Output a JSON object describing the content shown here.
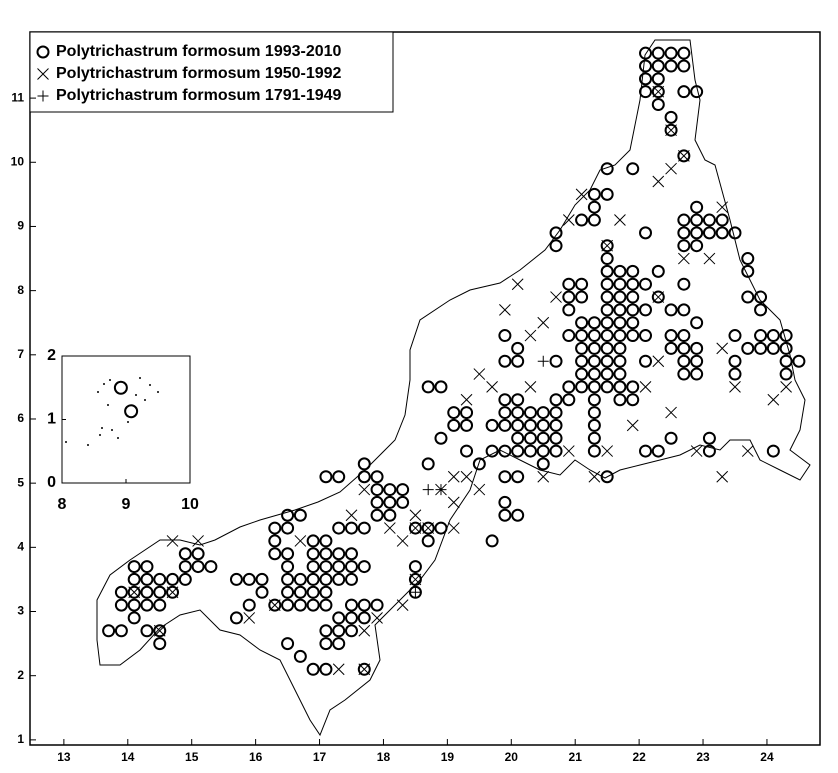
{
  "chart_data": [
    {
      "type": "scatter",
      "xlim": [
        12.47,
        24.83
      ],
      "ylim": [
        0.92,
        12.03
      ],
      "xticks": [
        13,
        14,
        15,
        16,
        17,
        18,
        19,
        20,
        21,
        22,
        23,
        24
      ],
      "yticks": [
        1,
        2,
        3,
        4,
        5,
        6,
        7,
        8,
        9,
        10,
        11
      ],
      "legend": "upper-left",
      "series": [
        {
          "name": "Polytrichastrum formosum 1993-2010",
          "marker": "circle",
          "color": "#000000",
          "x": [
            13.7,
            13.9,
            14.1,
            14.3,
            14.1,
            14.3,
            14.5,
            14.7,
            13.9,
            14.1,
            14.3,
            14.5,
            13.9,
            14.1,
            14.3,
            14.5,
            14.1,
            14.3,
            14.5,
            14.5,
            14.9,
            14.9,
            15.1,
            15.3,
            15.1,
            14.9,
            14.7,
            15.7,
            15.7,
            15.9,
            16.1,
            15.9,
            16.1,
            16.3,
            16.5,
            16.3,
            16.3,
            16.3,
            16.5,
            16.5,
            16.7,
            16.5,
            16.5,
            16.5,
            16.5,
            16.7,
            16.7,
            16.7,
            16.9,
            16.9,
            16.9,
            16.9,
            16.9,
            16.9,
            17.1,
            17.1,
            17.1,
            17.1,
            17.1,
            17.1,
            16.5,
            16.7,
            16.9,
            17.1,
            17.1,
            17.1,
            17.3,
            17.3,
            17.5,
            17.5,
            17.7,
            17.9,
            17.7,
            17.5,
            17.3,
            17.7,
            17.3,
            17.3,
            17.3,
            17.5,
            17.5,
            17.5,
            17.3,
            17.5,
            17.7,
            17.1,
            17.3,
            17.7,
            17.9,
            17.9,
            17.9,
            17.9,
            17.7,
            17.7,
            18.1,
            18.1,
            18.3,
            18.3,
            18.1,
            18.5,
            18.5,
            18.5,
            18.5,
            18.7,
            18.7,
            18.9,
            18.7,
            18.9,
            18.7,
            18.9,
            19.1,
            19.3,
            19.1,
            19.3,
            19.3,
            19.5,
            19.7,
            19.7,
            19.9,
            19.9,
            19.9,
            20.1,
            19.9,
            19.9,
            20.1,
            19.7,
            19.9,
            19.9,
            20.1,
            20.1,
            20.1,
            20.1,
            20.1,
            20.3,
            20.3,
            20.3,
            20.3,
            20.5,
            20.5,
            20.5,
            20.5,
            20.5,
            20.7,
            20.7,
            20.7,
            20.7,
            20.7,
            19.9,
            19.9,
            20.1,
            20.1,
            20.7,
            20.9,
            20.9,
            21.1,
            21.1,
            21.1,
            21.1,
            21.1,
            21.1,
            21.3,
            21.3,
            21.3,
            21.3,
            21.3,
            21.3,
            21.3,
            21.3,
            21.3,
            21.3,
            21.3,
            21.5,
            21.5,
            21.5,
            21.5,
            21.5,
            21.5,
            21.5,
            21.5,
            21.5,
            21.5,
            21.5,
            21.5,
            21.5,
            21.7,
            21.7,
            21.7,
            21.7,
            21.7,
            21.7,
            21.7,
            21.7,
            21.7,
            21.7,
            21.7,
            21.9,
            21.9,
            21.9,
            21.9,
            21.9,
            21.9,
            21.9,
            21.9,
            22.1,
            22.1,
            22.1,
            22.1,
            21.1,
            21.1,
            20.9,
            20.9,
            20.9,
            20.9,
            21.1,
            21.3,
            21.3,
            21.3,
            21.5,
            21.5,
            21.9,
            20.7,
            20.7,
            22.1,
            22.3,
            22.1,
            22.3,
            22.5,
            22.3,
            22.5,
            22.5,
            22.5,
            22.7,
            22.7,
            22.7,
            22.9,
            22.9,
            22.9,
            22.7,
            22.9,
            22.7,
            22.7,
            22.7,
            22.7,
            22.7,
            22.9,
            22.9,
            22.9,
            22.9,
            23.1,
            23.1,
            23.3,
            23.3,
            23.5,
            23.1,
            23.1,
            23.5,
            23.5,
            23.5,
            23.7,
            23.7,
            23.7,
            23.7,
            23.9,
            23.9,
            23.9,
            23.9,
            24.1,
            24.1,
            24.3,
            24.3,
            24.3,
            24.3,
            24.5,
            24.1,
            22.1,
            22.3,
            22.5,
            22.7,
            22.1,
            22.3,
            22.5,
            22.7,
            22.1,
            22.3,
            22.1,
            22.3,
            22.3,
            22.7,
            22.9,
            22.5,
            22.5,
            22.7
          ],
          "y": [
            2.7,
            2.7,
            3.7,
            3.7,
            3.5,
            3.5,
            3.5,
            3.5,
            3.3,
            3.3,
            3.3,
            3.3,
            3.1,
            3.1,
            3.1,
            3.1,
            2.9,
            2.7,
            2.7,
            2.5,
            3.7,
            3.9,
            3.9,
            3.7,
            3.7,
            3.5,
            3.3,
            2.9,
            3.5,
            3.5,
            3.5,
            3.1,
            3.3,
            3.1,
            3.1,
            3.9,
            4.1,
            4.3,
            4.3,
            4.5,
            4.5,
            3.9,
            3.7,
            3.5,
            3.3,
            3.5,
            3.3,
            3.1,
            3.1,
            3.3,
            3.5,
            3.7,
            3.9,
            4.1,
            3.9,
            3.7,
            3.5,
            3.3,
            3.1,
            4.1,
            2.5,
            2.3,
            2.1,
            2.1,
            2.5,
            2.7,
            2.7,
            2.9,
            2.9,
            3.1,
            3.1,
            3.1,
            2.9,
            2.7,
            2.5,
            2.1,
            3.5,
            3.7,
            3.9,
            3.9,
            3.7,
            3.5,
            4.3,
            4.3,
            4.3,
            5.1,
            5.1,
            3.7,
            4.5,
            4.7,
            4.9,
            5.1,
            5.1,
            5.3,
            4.7,
            4.9,
            4.9,
            4.7,
            4.5,
            3.3,
            3.5,
            3.7,
            4.3,
            4.3,
            4.1,
            4.3,
            5.3,
            5.7,
            6.5,
            6.5,
            6.1,
            6.1,
            5.9,
            5.9,
            5.5,
            5.3,
            5.5,
            5.9,
            5.9,
            5.5,
            5.1,
            5.1,
            4.7,
            4.5,
            4.5,
            4.1,
            6.1,
            6.3,
            6.3,
            6.1,
            5.9,
            5.7,
            5.5,
            5.5,
            5.7,
            5.9,
            6.1,
            6.1,
            5.9,
            5.7,
            5.5,
            5.3,
            5.5,
            5.7,
            5.9,
            6.1,
            6.3,
            7.3,
            6.9,
            6.9,
            7.1,
            6.9,
            6.5,
            6.3,
            6.5,
            6.7,
            6.9,
            7.1,
            7.3,
            7.5,
            7.5,
            7.3,
            7.1,
            6.9,
            6.7,
            6.5,
            6.3,
            6.1,
            5.9,
            5.7,
            5.5,
            5.1,
            6.5,
            6.7,
            6.9,
            7.1,
            7.3,
            7.5,
            7.7,
            7.9,
            8.1,
            8.3,
            8.5,
            8.7,
            8.3,
            8.1,
            7.9,
            7.7,
            7.5,
            7.3,
            7.1,
            6.9,
            6.7,
            6.5,
            6.3,
            6.3,
            6.5,
            7.3,
            7.5,
            7.7,
            7.9,
            8.1,
            8.3,
            8.1,
            7.7,
            7.3,
            6.9,
            7.9,
            8.1,
            8.1,
            7.9,
            7.7,
            7.3,
            9.1,
            9.1,
            9.3,
            9.5,
            9.5,
            9.9,
            9.9,
            8.7,
            8.9,
            8.9,
            8.3,
            5.5,
            5.5,
            5.7,
            7.9,
            7.7,
            7.3,
            7.1,
            7.1,
            6.9,
            6.7,
            6.7,
            6.9,
            7.1,
            7.3,
            7.5,
            7.7,
            8.1,
            8.7,
            8.9,
            9.1,
            8.9,
            8.7,
            9.1,
            9.3,
            9.1,
            8.9,
            8.9,
            9.1,
            8.9,
            5.5,
            5.7,
            7.3,
            6.9,
            6.7,
            7.1,
            7.9,
            8.3,
            8.5,
            7.9,
            7.7,
            7.3,
            7.1,
            7.1,
            7.3,
            7.3,
            7.1,
            6.7,
            6.9,
            6.9,
            5.5,
            11.7,
            11.7,
            11.7,
            11.7,
            11.5,
            11.5,
            11.5,
            11.5,
            11.3,
            11.3,
            11.1,
            11.1,
            10.9,
            11.1,
            11.1,
            10.7,
            10.5,
            10.1
          ]
        },
        {
          "name": "Polytrichastrum formosum 1950-1992",
          "marker": "x",
          "color": "#000000",
          "x": [
            20.1,
            19.9,
            20.7,
            20.3,
            20.5,
            19.5,
            19.3,
            19.7,
            20.3,
            19.3,
            19.5,
            19.1,
            19.1,
            18.9,
            19.1,
            18.3,
            18.1,
            18.5,
            17.7,
            17.5,
            16.7,
            15.1,
            14.7,
            15.9,
            16.3,
            17.3,
            17.7,
            17.9,
            18.3,
            21.1,
            21.7,
            22.3,
            22.5,
            23.3,
            23.1,
            22.7,
            22.3,
            22.5,
            22.1,
            21.9,
            22.9,
            23.3,
            23.7,
            24.1,
            24.3,
            23.5,
            23.3,
            20.9,
            20.5,
            20.9,
            21.5,
            21.3,
            14.1,
            14.5,
            14.7,
            18.5,
            18.5,
            18.7,
            22.5,
            22.7,
            22.3,
            17.7,
            21.5,
            22.3
          ],
          "y": [
            8.1,
            7.7,
            7.9,
            7.3,
            7.5,
            6.7,
            6.3,
            6.5,
            6.5,
            5.1,
            4.9,
            4.7,
            4.3,
            4.9,
            5.1,
            4.1,
            4.3,
            4.5,
            4.9,
            4.5,
            4.1,
            4.1,
            4.1,
            2.9,
            3.1,
            2.1,
            2.7,
            2.9,
            3.1,
            9.5,
            9.1,
            9.7,
            9.9,
            9.3,
            8.5,
            8.5,
            6.9,
            6.1,
            6.5,
            5.9,
            5.5,
            5.1,
            5.5,
            6.3,
            6.5,
            6.5,
            7.1,
            5.5,
            5.1,
            9.1,
            5.5,
            5.1,
            3.3,
            2.7,
            3.3,
            3.5,
            4.3,
            4.3,
            10.5,
            10.1,
            11.1,
            2.1,
            8.7,
            7.9
          ]
        },
        {
          "name": "Polytrichastrum formosum 1791-1949",
          "marker": "plus",
          "color": "#000000",
          "x": [
            18.7,
            18.9,
            20.5,
            18.5
          ],
          "y": [
            4.9,
            4.9,
            6.9,
            3.3
          ]
        }
      ]
    },
    {
      "type": "scatter",
      "xlim": [
        8,
        10
      ],
      "ylim": [
        0,
        2
      ],
      "xticks": [
        8,
        9,
        10
      ],
      "yticks": [
        0,
        1,
        2
      ],
      "series": [
        {
          "marker": "circle",
          "color": "#000000",
          "x": [
            8.92,
            9.08
          ],
          "y": [
            1.5,
            1.13
          ]
        }
      ]
    }
  ]
}
